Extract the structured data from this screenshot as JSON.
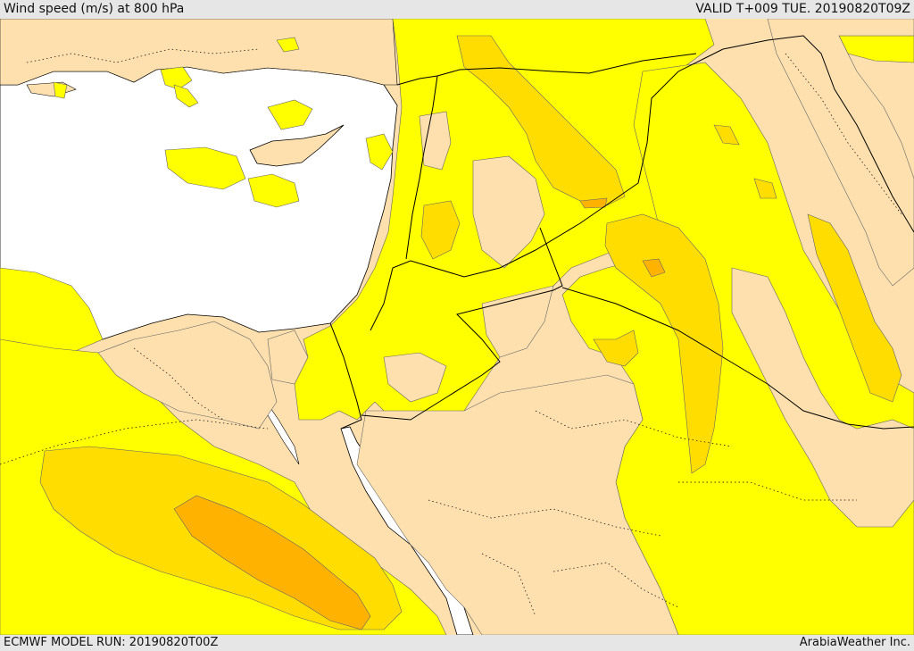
{
  "header": {
    "title": "Wind speed (m/s) at 800 hPa",
    "valid": "VALID T+009 TUE. 20190820T09Z"
  },
  "footer": {
    "model_run": "ECMWF MODEL RUN: 20190820T00Z",
    "credit": "ArabiaWeather Inc."
  },
  "map": {
    "variable": "wind speed",
    "level": "800 hPa",
    "units": "m/s",
    "fill_colors": {
      "sea": "#ffffff",
      "land_low": "#fde0ae",
      "band_1": "#ffff00",
      "band_2": "#ffdd00",
      "band_3": "#ffb300"
    },
    "line_colors": {
      "border": "#000000",
      "contour": "#555555"
    }
  }
}
